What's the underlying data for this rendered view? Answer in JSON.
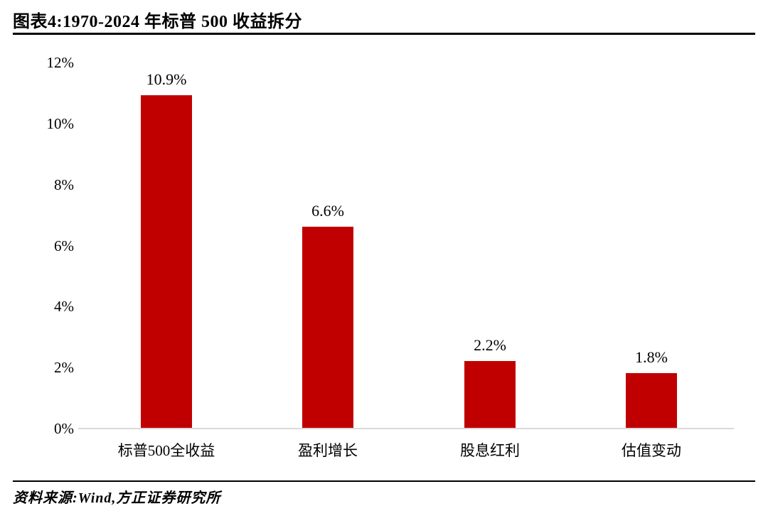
{
  "header": {
    "title": "图表4:1970-2024 年标普 500 收益拆分"
  },
  "footer": {
    "source": "资料来源:Wind,方正证券研究所"
  },
  "chart_data": {
    "type": "bar",
    "title": "图表4:1970-2024 年标普 500 收益拆分",
    "categories": [
      "标普500全收益",
      "盈利增长",
      "股息红利",
      "估值变动"
    ],
    "values": [
      10.9,
      6.6,
      2.2,
      1.8
    ],
    "value_labels": [
      "10.9%",
      "6.6%",
      "2.2%",
      "1.8%"
    ],
    "xlabel": "",
    "ylabel": "",
    "ylim": [
      0,
      12
    ],
    "y_tick_values": [
      12,
      10,
      8,
      6,
      4,
      2,
      0
    ],
    "y_tick_labels": [
      "12%",
      "10%",
      "8%",
      "6%",
      "4%",
      "2%",
      "0%"
    ],
    "grid": false,
    "legend": "none",
    "bar_color": "#C00000",
    "axis_line_color": "#d9d9d9",
    "source": "资料来源:Wind,方正证券研究所"
  }
}
